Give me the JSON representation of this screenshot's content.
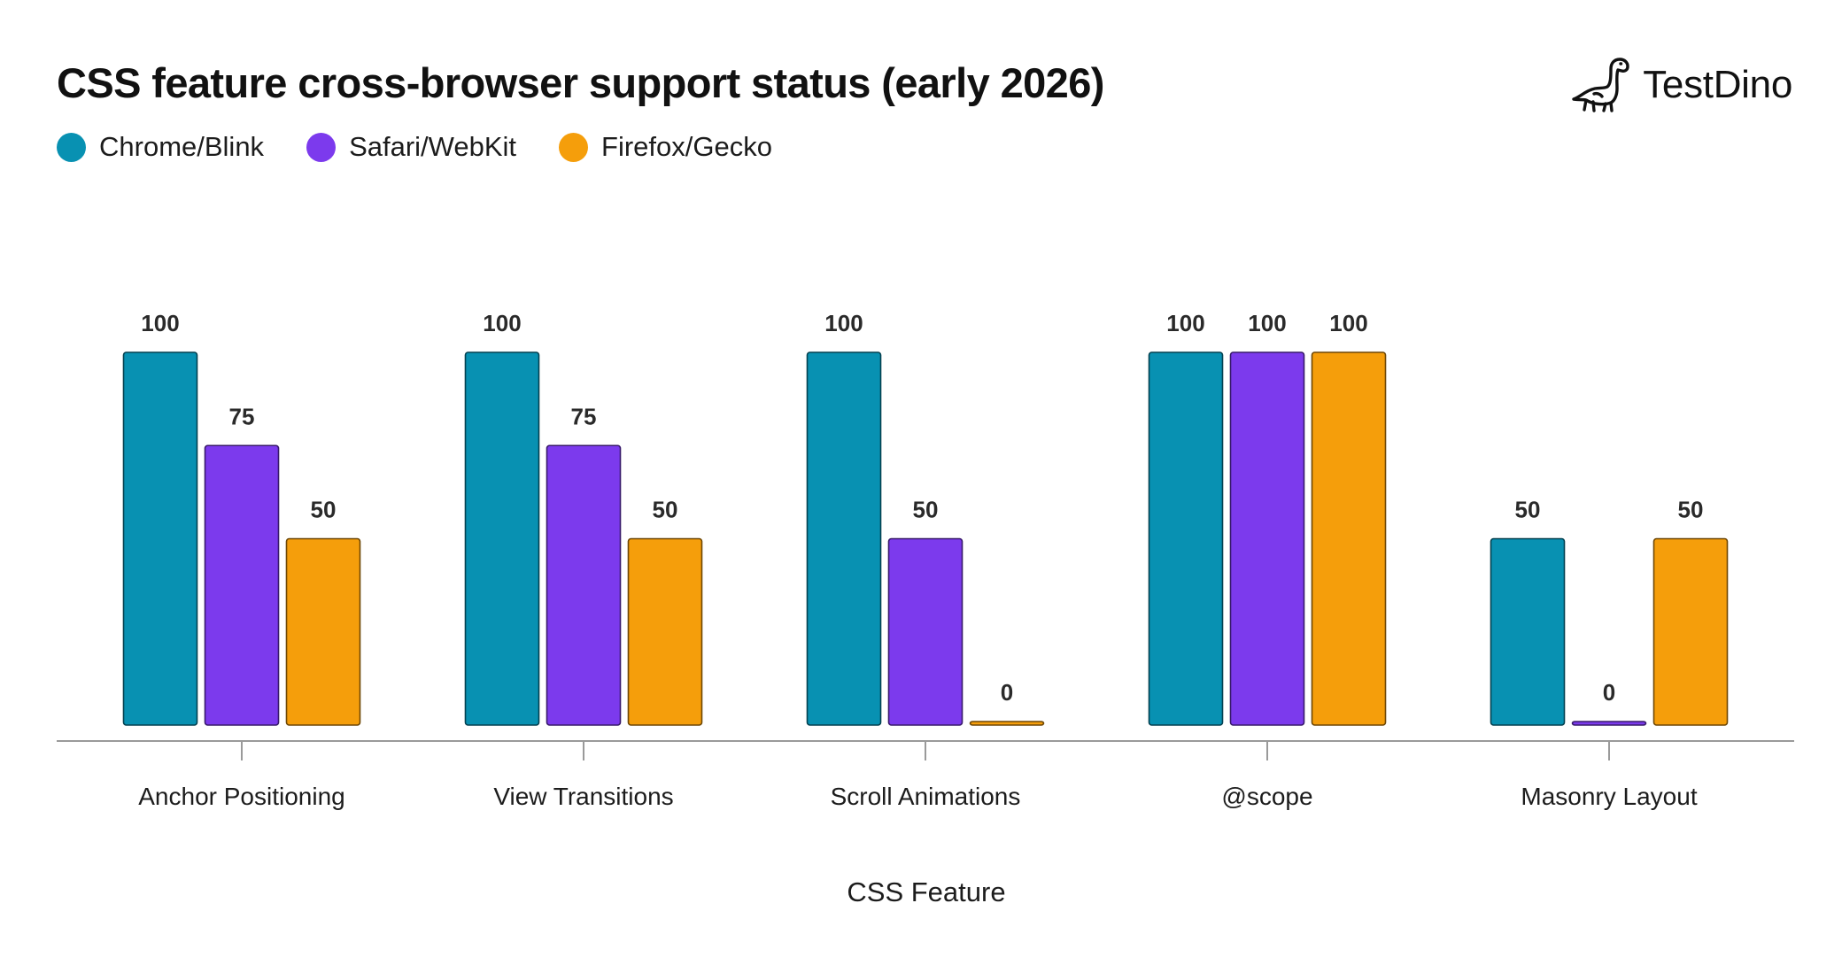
{
  "brand": {
    "name": "TestDino",
    "icon": "dinosaur-icon"
  },
  "chart_data": {
    "type": "bar",
    "title": "CSS feature cross-browser support status (early 2026)",
    "xlabel": "CSS Feature",
    "ylabel": "",
    "ylim": [
      0,
      100
    ],
    "grid": false,
    "legend_position": "top-left",
    "categories": [
      "Anchor Positioning",
      "View Transitions",
      "Scroll Animations",
      "@scope",
      "Masonry Layout"
    ],
    "series": [
      {
        "name": "Chrome/Blink",
        "color": "#0891b2",
        "values": [
          100,
          100,
          100,
          100,
          50
        ]
      },
      {
        "name": "Safari/WebKit",
        "color": "#7c3aed",
        "values": [
          75,
          75,
          50,
          100,
          0
        ]
      },
      {
        "name": "Firefox/Gecko",
        "color": "#f59e0b",
        "values": [
          50,
          50,
          0,
          100,
          50
        ]
      }
    ]
  }
}
